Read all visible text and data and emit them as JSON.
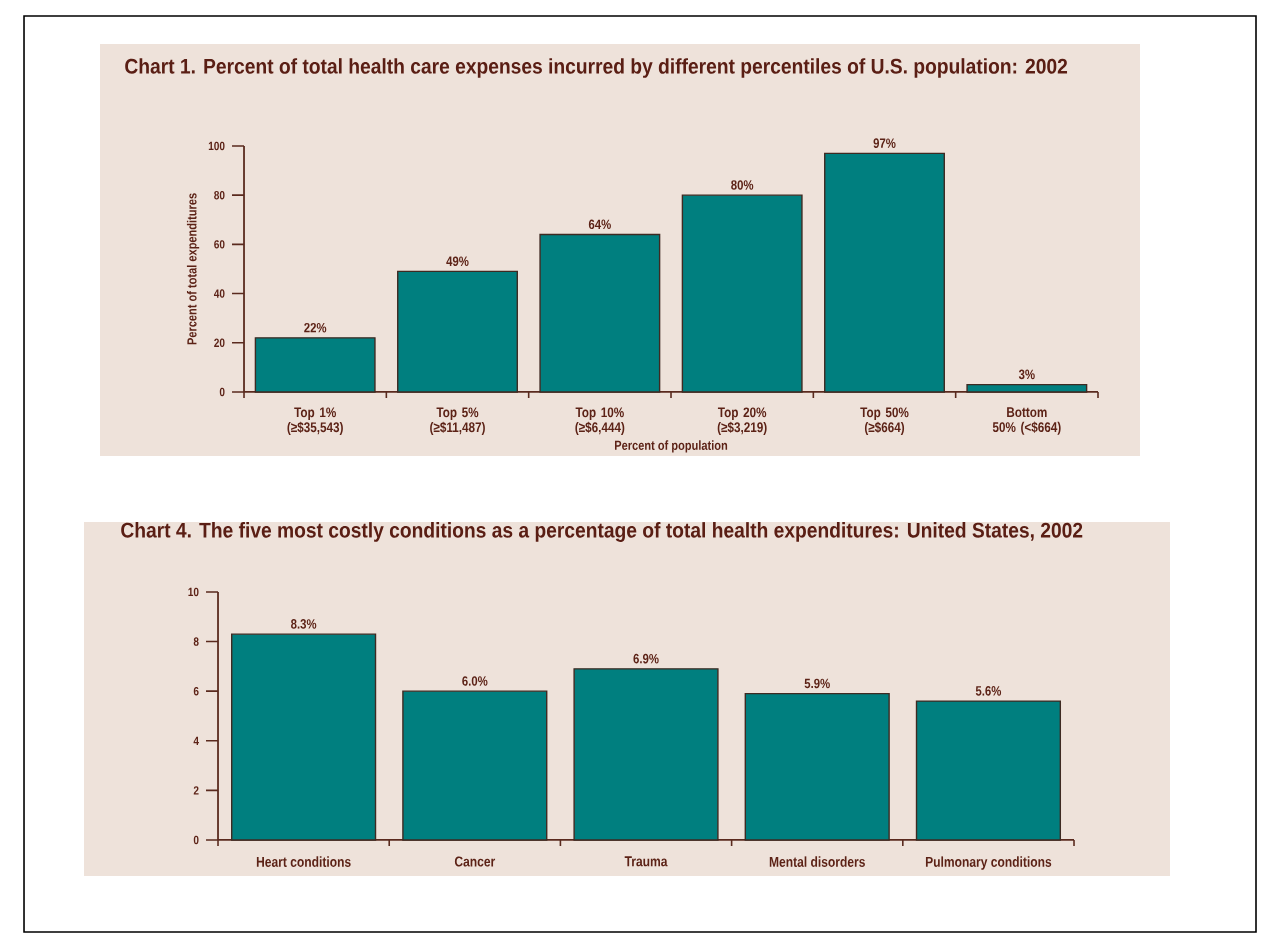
{
  "chart_data": [
    {
      "type": "bar",
      "title": "Chart 1. Percent of total health care expenses incurred by different percentiles of U.S. population: 2002",
      "xlabel": "Percent of population",
      "ylabel": "Percent of total expenditures",
      "categories": [
        "Top 1% (≥$35,543)",
        "Top 5% (≥$11,487)",
        "Top 10% (≥$6,444)",
        "Top 20% (≥$3,219)",
        "Top 50% (≥$664)",
        "Bottom 50% (<$664)"
      ],
      "values": [
        22,
        49,
        64,
        80,
        97,
        3
      ],
      "value_labels": [
        "22%",
        "49%",
        "64%",
        "80%",
        "97%",
        "3%"
      ],
      "color": "#007f7f",
      "ylim": [
        0,
        100
      ],
      "yticks": [
        0,
        20,
        40,
        60,
        80,
        100
      ]
    },
    {
      "type": "bar",
      "title": "Chart 4. The five most costly conditions as a percentage of total health expenditures: United States, 2002",
      "categories": [
        "Heart conditions",
        "Cancer",
        "Trauma",
        "Mental disorders",
        "Pulmonary conditions"
      ],
      "values": [
        8.3,
        6.0,
        6.9,
        5.9,
        5.6
      ],
      "value_labels": [
        "8.3%",
        "6.0%",
        "6.9%",
        "5.9%",
        "5.6%"
      ],
      "color": "#007f7f",
      "ylim": [
        0,
        10
      ],
      "yticks": [
        0,
        2,
        4,
        6,
        8,
        10
      ]
    }
  ]
}
